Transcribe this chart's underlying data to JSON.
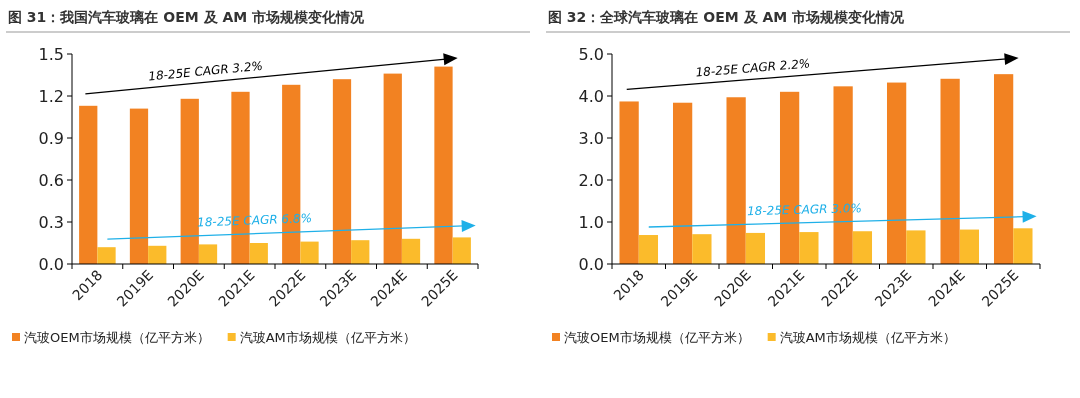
{
  "chart_data": [
    {
      "type": "bar",
      "title": "图 31：我国汽车玻璃在 OEM 及 AM 市场规模变化情况",
      "categories": [
        "2018",
        "2019E",
        "2020E",
        "2021E",
        "2022E",
        "2023E",
        "2024E",
        "2025E"
      ],
      "series": [
        {
          "name": "汽玻OEM市场规模（亿平方米）",
          "color": "#f28222",
          "values": [
            1.13,
            1.11,
            1.18,
            1.23,
            1.28,
            1.32,
            1.36,
            1.41
          ]
        },
        {
          "name": "汽玻AM市场规模（亿平方米）",
          "color": "#fbbb2b",
          "values": [
            0.12,
            0.13,
            0.14,
            0.15,
            0.16,
            0.17,
            0.18,
            0.19
          ]
        }
      ],
      "ylim": [
        0,
        1.5
      ],
      "yticks": [
        {
          "value": 0,
          "label": "0.0"
        },
        0.3,
        0.6,
        0.9,
        1.2,
        1.5
      ],
      "grid": false,
      "legend": "bottom",
      "annotations": [
        "18-25E CAGR 3.2%",
        "18-25E CAGR 6.8%"
      ]
    },
    {
      "type": "bar",
      "title": "图 32：全球汽车玻璃在 OEM 及 AM 市场规模变化情况",
      "categories": [
        "2018",
        "2019E",
        "2020E",
        "2021E",
        "2022E",
        "2023E",
        "2024E",
        "2025E"
      ],
      "series": [
        {
          "name": "汽玻OEM市场规模（亿平方米）",
          "color": "#f28222",
          "values": [
            3.87,
            3.84,
            3.97,
            4.1,
            4.23,
            4.32,
            4.41,
            4.52
          ]
        },
        {
          "name": "汽玻AM市场规模（亿平方米）",
          "color": "#fbbb2b",
          "values": [
            0.69,
            0.71,
            0.74,
            0.76,
            0.78,
            0.8,
            0.82,
            0.85
          ]
        }
      ],
      "ylim": [
        0,
        5
      ],
      "yticks": [
        {
          "value": 0,
          "label": "0.0"
        },
        {
          "value": 1,
          "label": "1.0"
        },
        {
          "value": 2,
          "label": "2.0"
        },
        {
          "value": 3,
          "label": "3.0"
        },
        {
          "value": 4,
          "label": "4.0"
        },
        {
          "value": 5,
          "label": "5.0"
        }
      ],
      "grid": false,
      "legend": "bottom",
      "annotations": [
        "18-25E CAGR 2.2%",
        "18-25E CAGR 3.0%"
      ]
    }
  ]
}
